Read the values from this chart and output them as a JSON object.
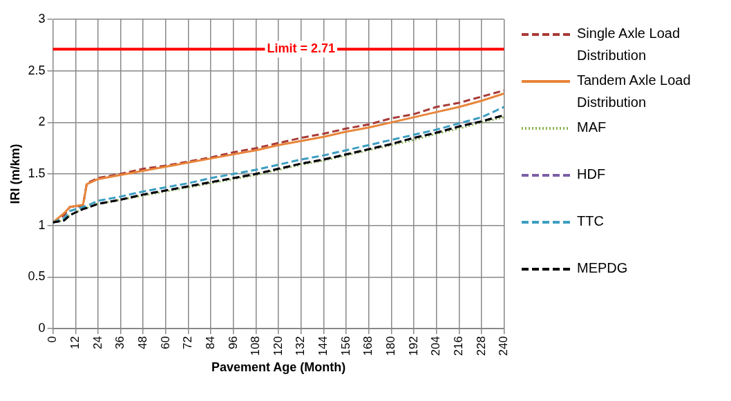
{
  "chart_data": {
    "type": "line",
    "xlabel": "Pavement Age (Month)",
    "ylabel": "IRI (m/km)",
    "x": [
      0,
      6,
      9,
      16,
      18,
      24,
      36,
      48,
      60,
      72,
      84,
      96,
      108,
      120,
      132,
      144,
      156,
      168,
      180,
      192,
      204,
      216,
      228,
      240
    ],
    "xlim": [
      0,
      240
    ],
    "xticks": [
      0,
      12,
      24,
      36,
      48,
      60,
      72,
      84,
      96,
      108,
      120,
      132,
      144,
      156,
      168,
      180,
      192,
      204,
      216,
      228,
      240
    ],
    "ylim": [
      0,
      3
    ],
    "yticks": [
      0,
      0.5,
      1,
      1.5,
      2,
      2.5,
      3
    ],
    "grid": true,
    "legend": "right",
    "marker": "none",
    "ref_lines": [
      {
        "axis": "y",
        "value": 2.71,
        "label": "Limit = 2.71",
        "color": "#ff0000",
        "line_style": "solid"
      }
    ],
    "series": [
      {
        "name": "Single Axle Load Distribution",
        "color": "#a83a36",
        "line_style": "dashed",
        "values": [
          1.03,
          1.1,
          1.18,
          1.19,
          1.41,
          1.46,
          1.5,
          1.55,
          1.58,
          1.62,
          1.66,
          1.71,
          1.75,
          1.8,
          1.85,
          1.89,
          1.94,
          1.98,
          2.04,
          2.08,
          2.15,
          2.19,
          2.25,
          2.31
        ]
      },
      {
        "name": "Tandem Axle Load Distribution",
        "color": "#e8853a",
        "line_style": "solid",
        "values": [
          1.03,
          1.12,
          1.18,
          1.2,
          1.4,
          1.45,
          1.49,
          1.53,
          1.57,
          1.61,
          1.65,
          1.69,
          1.73,
          1.78,
          1.82,
          1.86,
          1.91,
          1.95,
          2.0,
          2.05,
          2.1,
          2.15,
          2.21,
          2.28
        ]
      },
      {
        "name": "MAF",
        "color": "#8db350",
        "line_style": "dotted",
        "values": [
          1.03,
          1.05,
          1.1,
          1.16,
          1.17,
          1.21,
          1.25,
          1.29,
          1.33,
          1.37,
          1.41,
          1.45,
          1.49,
          1.54,
          1.59,
          1.63,
          1.68,
          1.73,
          1.78,
          1.83,
          1.89,
          1.94,
          2.0,
          2.05
        ]
      },
      {
        "name": "HDF",
        "color": "#7b5ea7",
        "line_style": "dashed",
        "values": [
          1.03,
          1.05,
          1.1,
          1.16,
          1.17,
          1.21,
          1.25,
          1.3,
          1.34,
          1.38,
          1.42,
          1.46,
          1.5,
          1.55,
          1.6,
          1.64,
          1.69,
          1.74,
          1.79,
          1.85,
          1.9,
          1.96,
          2.01,
          2.07
        ]
      },
      {
        "name": "TTC",
        "color": "#3c9ec0",
        "line_style": "dashed",
        "values": [
          1.03,
          1.07,
          1.14,
          1.18,
          1.19,
          1.24,
          1.28,
          1.33,
          1.37,
          1.41,
          1.46,
          1.5,
          1.54,
          1.59,
          1.64,
          1.68,
          1.73,
          1.78,
          1.83,
          1.88,
          1.93,
          1.99,
          2.05,
          2.15
        ]
      },
      {
        "name": "MEPDG",
        "color": "#000000",
        "line_style": "dashed",
        "values": [
          1.03,
          1.05,
          1.1,
          1.16,
          1.17,
          1.21,
          1.25,
          1.3,
          1.34,
          1.38,
          1.42,
          1.46,
          1.5,
          1.55,
          1.6,
          1.64,
          1.69,
          1.74,
          1.79,
          1.85,
          1.9,
          1.96,
          2.01,
          2.07
        ]
      }
    ]
  }
}
